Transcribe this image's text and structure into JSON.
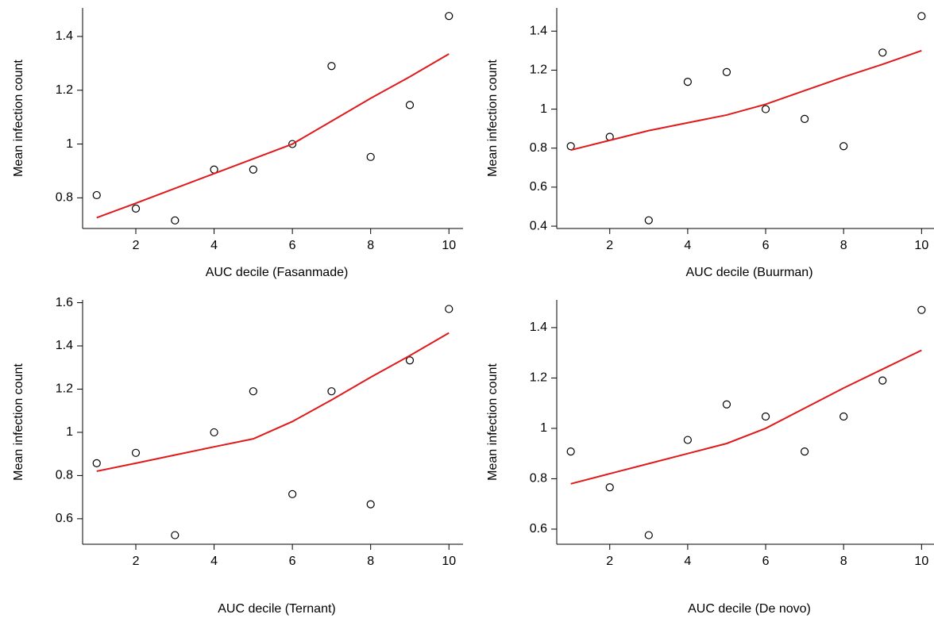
{
  "chart_data": [
    {
      "type": "scatter",
      "xlabel": "AUC decile (Fasanmade)",
      "ylabel": "Mean infection count",
      "x": [
        1,
        2,
        3,
        4,
        5,
        6,
        7,
        8,
        9,
        10
      ],
      "xlim": [
        0.64,
        10.36
      ],
      "xticks": [
        2,
        4,
        6,
        8,
        10
      ],
      "ylim": [
        0.686,
        1.506
      ],
      "yticks": [
        0.8,
        1.0,
        1.2,
        1.4
      ],
      "series": [
        {
          "type": "scatter",
          "color": "#000000",
          "values": [
            0.81,
            0.76,
            0.716,
            0.905,
            0.905,
            1.0,
            1.29,
            0.952,
            1.145,
            1.476
          ]
        },
        {
          "type": "line",
          "color": "#e0191b",
          "values": [
            0.726,
            0.78,
            0.835,
            0.89,
            0.945,
            1.0,
            1.085,
            1.17,
            1.25,
            1.335
          ]
        }
      ]
    },
    {
      "type": "scatter",
      "xlabel": "AUC decile (Buurman)",
      "ylabel": "Mean infection count",
      "x": [
        1,
        2,
        3,
        4,
        5,
        6,
        7,
        8,
        9,
        10
      ],
      "xlim": [
        0.64,
        10.36
      ],
      "xticks": [
        2,
        4,
        6,
        8,
        10
      ],
      "ylim": [
        0.388,
        1.519
      ],
      "yticks": [
        0.4,
        0.6,
        0.8,
        1.0,
        1.2,
        1.4
      ],
      "series": [
        {
          "type": "scatter",
          "color": "#000000",
          "values": [
            0.81,
            0.858,
            0.43,
            1.14,
            1.19,
            1.0,
            0.95,
            0.81,
            1.29,
            1.477
          ]
        },
        {
          "type": "line",
          "color": "#e0191b",
          "values": [
            0.79,
            0.84,
            0.89,
            0.93,
            0.97,
            1.025,
            1.095,
            1.165,
            1.23,
            1.3
          ]
        }
      ]
    },
    {
      "type": "scatter",
      "xlabel": "AUC decile (Ternant)",
      "ylabel": "Mean infection count",
      "x": [
        1,
        2,
        3,
        4,
        5,
        6,
        7,
        8,
        9,
        10
      ],
      "xlim": [
        0.64,
        10.36
      ],
      "xticks": [
        2,
        4,
        6,
        8,
        10
      ],
      "ylim": [
        0.482,
        1.613
      ],
      "yticks": [
        0.6,
        0.8,
        1.0,
        1.2,
        1.4,
        1.6
      ],
      "series": [
        {
          "type": "scatter",
          "color": "#000000",
          "values": [
            0.857,
            0.905,
            0.524,
            1.0,
            1.19,
            0.714,
            1.19,
            0.667,
            1.333,
            1.571
          ]
        },
        {
          "type": "line",
          "color": "#e0191b",
          "values": [
            0.82,
            0.857,
            0.895,
            0.933,
            0.97,
            1.05,
            1.15,
            1.255,
            1.355,
            1.46
          ]
        }
      ]
    },
    {
      "type": "scatter",
      "xlabel": "AUC decile (De novo)",
      "ylabel": "Mean infection count",
      "x": [
        1,
        2,
        3,
        4,
        5,
        6,
        7,
        8,
        9,
        10
      ],
      "xlim": [
        0.64,
        10.36
      ],
      "xticks": [
        2,
        4,
        6,
        8,
        10
      ],
      "ylim": [
        0.54,
        1.51
      ],
      "yticks": [
        0.6,
        0.8,
        1.0,
        1.2,
        1.4
      ],
      "series": [
        {
          "type": "scatter",
          "color": "#000000",
          "values": [
            0.908,
            0.766,
            0.576,
            0.954,
            1.095,
            1.047,
            0.908,
            1.047,
            1.19,
            1.47
          ]
        },
        {
          "type": "line",
          "color": "#e0191b",
          "values": [
            0.78,
            0.82,
            0.86,
            0.9,
            0.94,
            1.0,
            1.08,
            1.16,
            1.235,
            1.31
          ]
        }
      ]
    }
  ]
}
